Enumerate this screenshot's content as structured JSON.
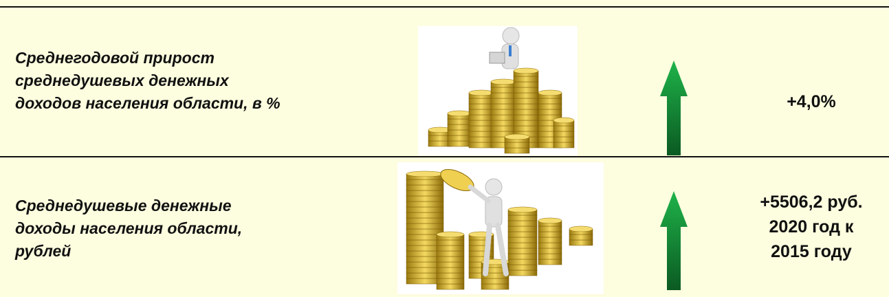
{
  "rows": [
    {
      "label": [
        "Среднегодовой прирост",
        "среднедушевых денежных",
        "доходов населения области, в %"
      ],
      "value": [
        "+4,0%"
      ]
    },
    {
      "label": [
        "Среднедушевые денежные",
        "доходы населения области,",
        "рублей"
      ],
      "value": [
        "+5506,2 руб.",
        "2020 год к",
        "2015 году"
      ]
    }
  ]
}
